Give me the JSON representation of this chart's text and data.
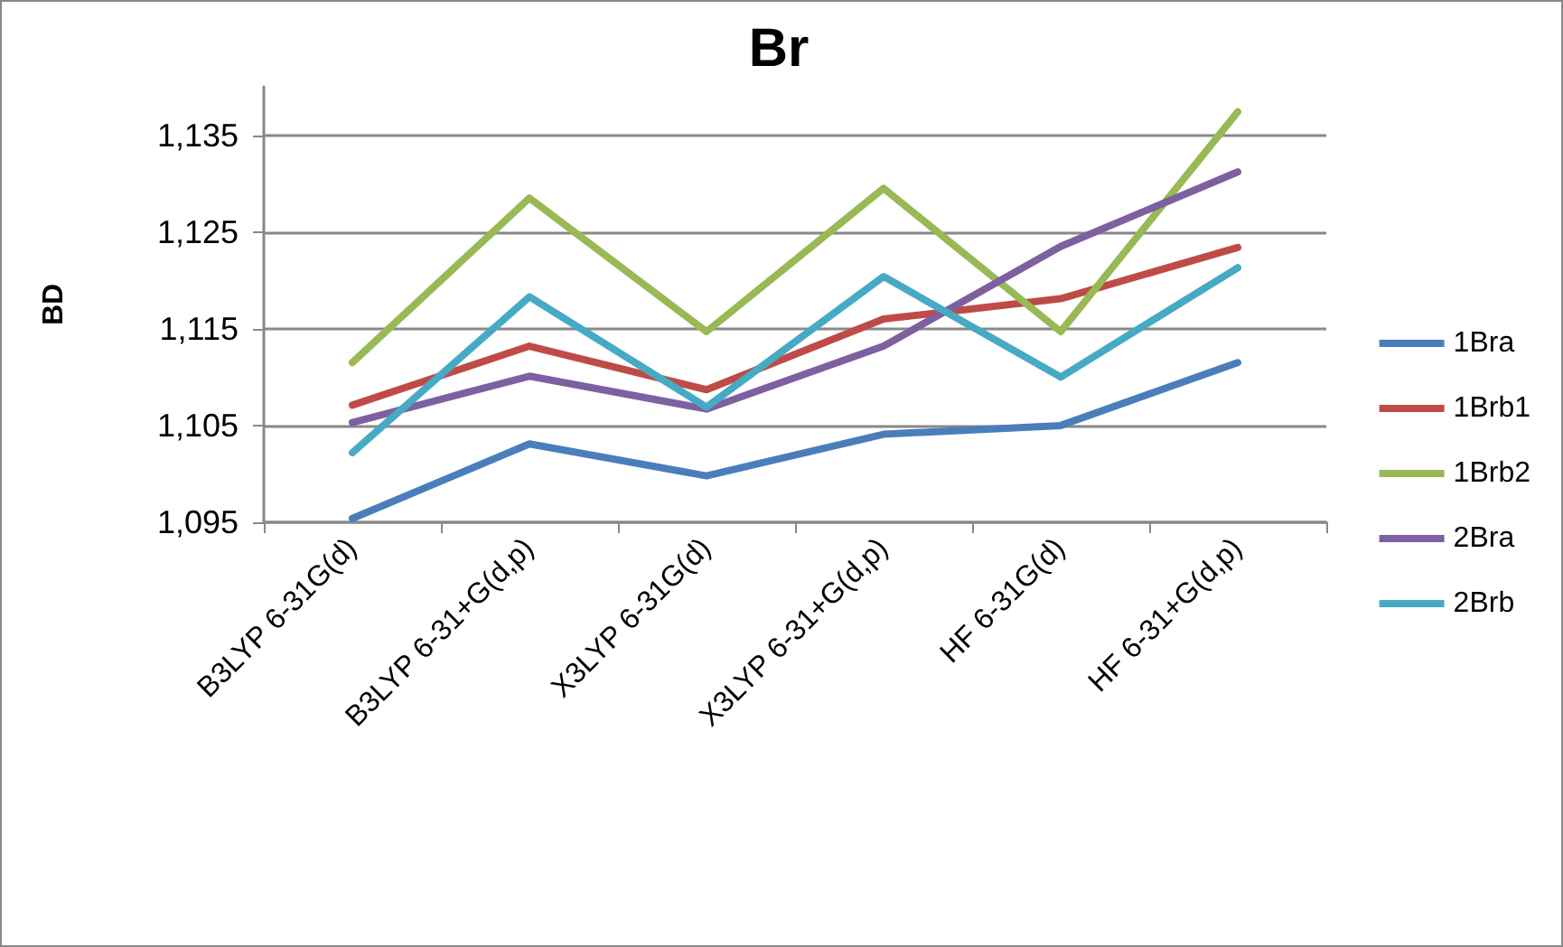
{
  "chart_data": {
    "type": "line",
    "title": "Br",
    "ylabel": "BD",
    "categories": [
      "B3LYP 6-31G(d)",
      "B3LYP 6-31+G(d,p)",
      "X3LYP 6-31G(d)",
      "X3LYP 6-31+G(d,p)",
      "HF 6-31G(d)",
      "HF 6-31+G(d,p)"
    ],
    "series": [
      {
        "name": "1Bra",
        "color": "#4a7ebb",
        "values": [
          1095.4,
          1103.1,
          1099.8,
          1104.1,
          1105.0,
          1111.5
        ]
      },
      {
        "name": "1Brb1",
        "color": "#be4b48",
        "values": [
          1107.1,
          1113.2,
          1108.7,
          1116.0,
          1118.1,
          1123.4
        ]
      },
      {
        "name": "1Brb2",
        "color": "#98b954",
        "values": [
          1111.5,
          1128.5,
          1114.7,
          1129.5,
          1114.7,
          1137.4
        ]
      },
      {
        "name": "2Bra",
        "color": "#7d60a0",
        "values": [
          1105.3,
          1110.1,
          1106.7,
          1113.2,
          1123.5,
          1131.2
        ]
      },
      {
        "name": "2Brb",
        "color": "#46aac5",
        "values": [
          1102.2,
          1118.3,
          1106.9,
          1120.4,
          1110.0,
          1121.3
        ]
      }
    ],
    "ylim": [
      1095,
      1140
    ],
    "yticks": [
      {
        "value": 1095,
        "label": "1,095"
      },
      {
        "value": 1105,
        "label": "1,105"
      },
      {
        "value": 1115,
        "label": "1,115"
      },
      {
        "value": 1125,
        "label": "1,125"
      },
      {
        "value": 1135,
        "label": "1,135"
      }
    ],
    "grid": "y",
    "legend": "right",
    "marker": "none",
    "line_style": "solid"
  }
}
